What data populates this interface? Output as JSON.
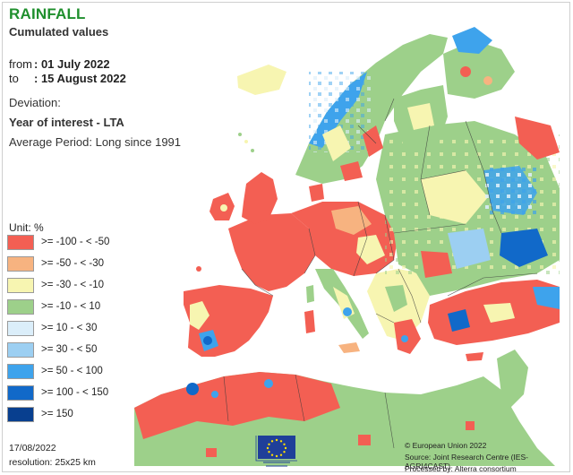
{
  "header": {
    "title": "RAINFALL",
    "subtitle": "Cumulated values",
    "from_label": "from",
    "from_value": ": 01 July 2022",
    "to_label": "to",
    "to_value": ": 15 August 2022",
    "deviation_label": "Deviation:",
    "deviation_type": "Year of interest - LTA",
    "average_period": "Average Period: Long since 1991"
  },
  "legend": {
    "unit": "Unit:  %",
    "items": [
      {
        "label": ">= -100 - < -50",
        "color": "#f35f53"
      },
      {
        "label": ">= -50 - < -30",
        "color": "#f7b380"
      },
      {
        "label": ">= -30 - < -10",
        "color": "#f7f5b1"
      },
      {
        "label": ">= -10 - < 10",
        "color": "#9dd08a"
      },
      {
        "label": ">= 10 - < 30",
        "color": "#dbeefa"
      },
      {
        "label": ">= 30 - < 50",
        "color": "#9ccff2"
      },
      {
        "label": ">= 50 - < 100",
        "color": "#3ea3ec"
      },
      {
        "label": ">= 100 - < 150",
        "color": "#1169c9"
      },
      {
        "label": ">= 150",
        "color": "#083f8f"
      }
    ]
  },
  "footer": {
    "date": "17/08/2022",
    "resolution": "resolution:  25x25 km",
    "copyright": "© European Union 2022",
    "source": "Source: Joint Research Centre (IES-AGRI4CAST)",
    "processed": "Processed by: Alterra consortium",
    "logo_text": "European Commission"
  },
  "map": {
    "colors": {
      "sea": "#ffffff",
      "border": "#3a3a3a"
    }
  }
}
